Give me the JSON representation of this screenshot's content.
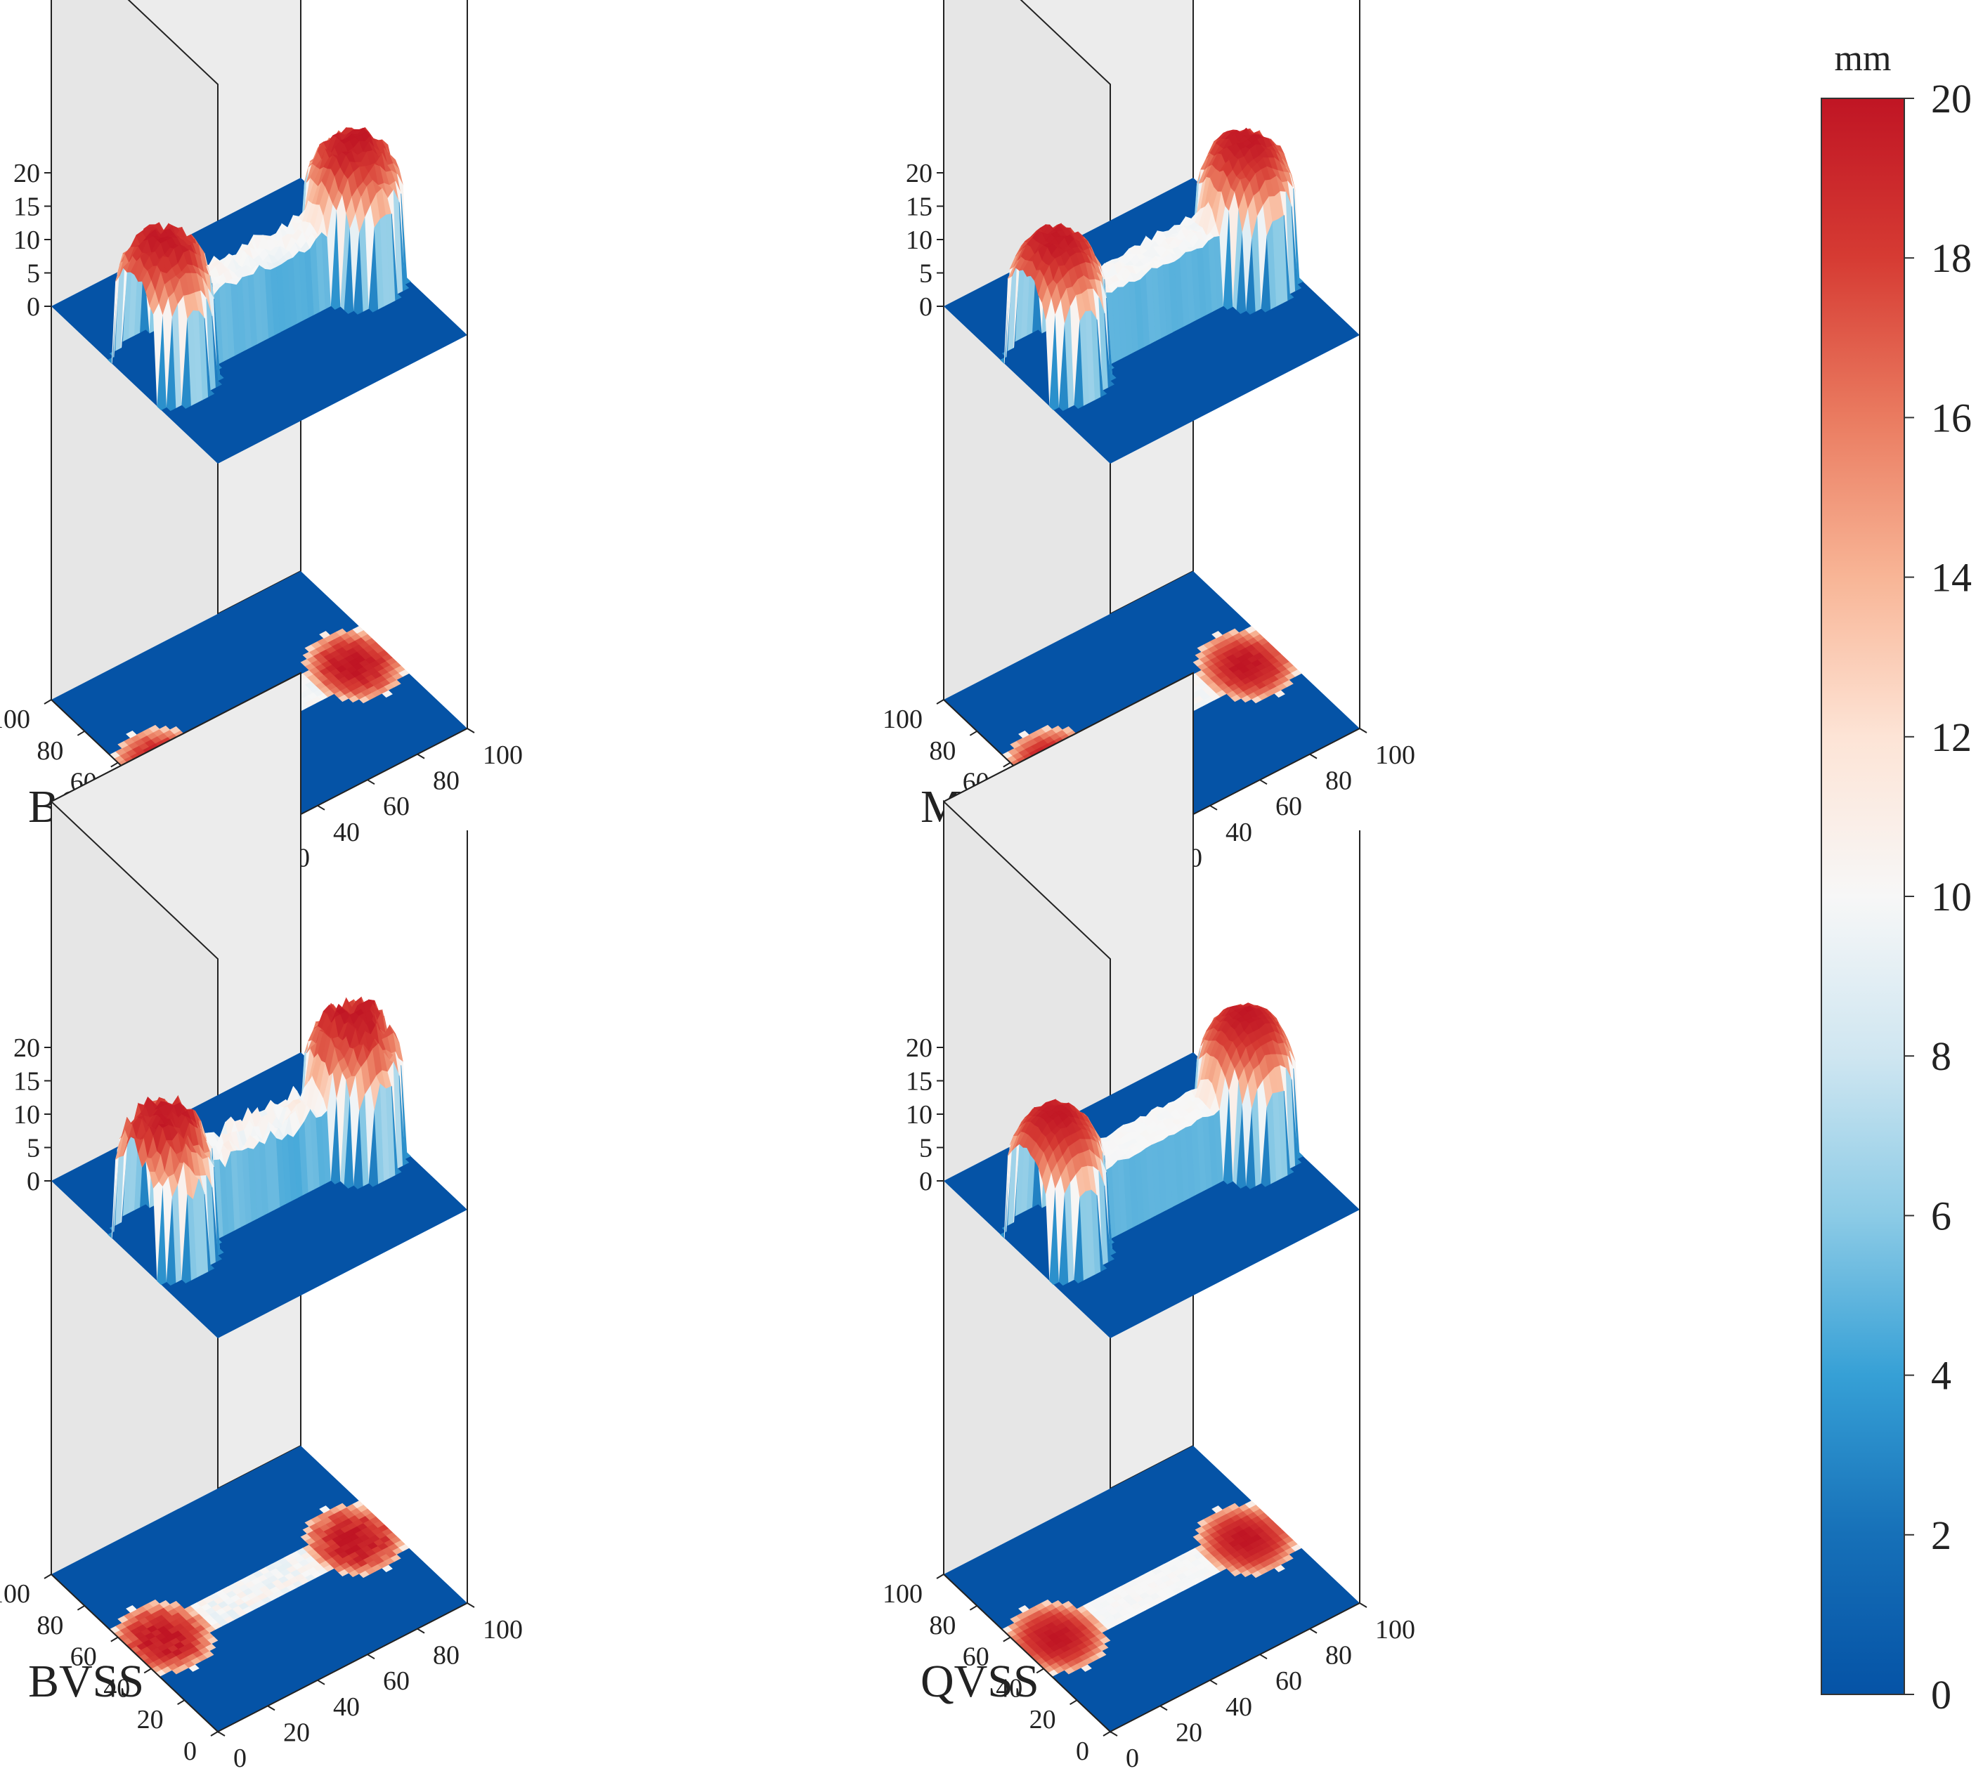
{
  "chart_data": {
    "type": "surface3d",
    "description_units": "mm",
    "colormap": {
      "name": "RdBu_r",
      "vmin": 0,
      "vmax": 20,
      "stops": [
        "#0553a6",
        "#1670b8",
        "#36a0d6",
        "#8ccbe6",
        "#cfe6f1",
        "#f7f7f7",
        "#fde4d6",
        "#f8b596",
        "#ea7b60",
        "#d63b33",
        "#c01524"
      ],
      "unit_label": "mm",
      "ticks": [
        "0",
        "2",
        "4",
        "6",
        "8",
        "10",
        "12",
        "14",
        "16",
        "18",
        "20"
      ]
    },
    "axes": {
      "x_ticks": [
        "0",
        "20",
        "40",
        "60",
        "80",
        "100"
      ],
      "y_ticks": [
        "0",
        "20",
        "40",
        "60",
        "80",
        "100"
      ],
      "z_ticks": [
        "0",
        "5",
        "10",
        "15",
        "20"
      ],
      "x_range": [
        0,
        100
      ],
      "y_range": [
        0,
        100
      ],
      "z_range": [
        0,
        20
      ]
    },
    "shape": {
      "description": "dog-bone specimen: gauge section plus two wider circular grip ends",
      "gauge_height_mm": 10,
      "grip_peak_mm": 20,
      "background_mm": 0
    },
    "panels": [
      {
        "label": "BSS",
        "noise": 0.9
      },
      {
        "label": "MVSS",
        "noise": 0.6
      },
      {
        "label": "BVSS",
        "noise": 1.6
      },
      {
        "label": "QVSS",
        "noise": 0.35
      }
    ]
  }
}
